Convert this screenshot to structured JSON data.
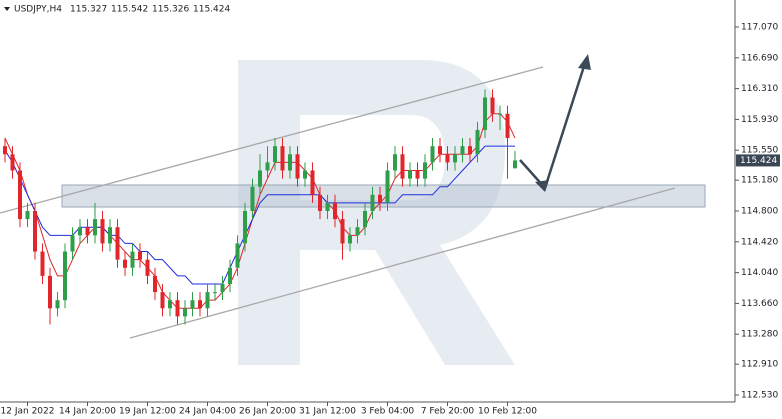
{
  "chart_data": {
    "type": "candlestick",
    "title": "USDJPY,H4",
    "categories": [
      null,
      null,
      null,
      "12 Jan 2022",
      null,
      null,
      null,
      null,
      null,
      null,
      null,
      "14 Jan 20:00",
      null,
      null,
      null,
      null,
      null,
      null,
      null,
      "19 Jan 12:00",
      null,
      null,
      null,
      null,
      null,
      null,
      null,
      "24 Jan 04:00",
      null,
      null,
      null,
      null,
      null,
      null,
      null,
      "26 Jan 20:00",
      null,
      null,
      null,
      null,
      null,
      null,
      null,
      "31 Jan 12:00",
      null,
      null,
      null,
      null,
      null,
      null,
      null,
      "3 Feb 04:00",
      null,
      null,
      null,
      null,
      null,
      null,
      null,
      "7 Feb 20:00",
      null,
      null,
      null,
      null,
      null,
      null,
      null,
      "10 Feb 12:00",
      null
    ],
    "candles": {
      "open": [
        115.6,
        115.5,
        115.3,
        114.7,
        114.8,
        114.3,
        114.0,
        113.6,
        113.7,
        114.3,
        114.5,
        114.6,
        114.5,
        114.7,
        114.4,
        114.6,
        114.2,
        114.1,
        114.3,
        114.2,
        114.0,
        113.8,
        113.6,
        113.7,
        113.5,
        113.6,
        113.7,
        113.6,
        113.8,
        113.8,
        113.9,
        114.1,
        114.4,
        114.8,
        115.1,
        115.3,
        115.4,
        115.6,
        115.3,
        115.5,
        115.2,
        115.3,
        115.0,
        114.8,
        114.9,
        114.7,
        114.4,
        114.5,
        114.6,
        114.8,
        115.0,
        114.9,
        115.3,
        115.5,
        115.2,
        115.3,
        115.2,
        115.4,
        115.6,
        115.5,
        115.4,
        115.5,
        115.6,
        115.5,
        115.8,
        116.2,
        116.0,
        116.0,
        115.327
      ],
      "high": [
        115.7,
        115.6,
        115.4,
        114.9,
        114.9,
        114.4,
        114.1,
        113.8,
        114.4,
        114.6,
        114.7,
        114.7,
        114.9,
        114.8,
        114.7,
        114.7,
        114.3,
        114.4,
        114.4,
        114.3,
        114.1,
        113.9,
        113.8,
        113.8,
        113.7,
        113.8,
        113.8,
        113.9,
        113.9,
        114.0,
        114.2,
        114.5,
        114.9,
        115.2,
        115.5,
        115.6,
        115.7,
        115.7,
        115.6,
        115.6,
        115.4,
        115.4,
        115.1,
        115.0,
        115.0,
        114.8,
        114.6,
        114.7,
        114.9,
        115.1,
        115.1,
        115.4,
        115.6,
        115.6,
        115.4,
        115.4,
        115.5,
        115.7,
        115.7,
        115.6,
        115.6,
        115.7,
        115.7,
        115.9,
        116.3,
        116.3,
        116.1,
        116.1,
        115.542
      ],
      "low": [
        115.4,
        115.2,
        114.6,
        114.6,
        114.2,
        113.9,
        113.4,
        113.5,
        113.6,
        114.2,
        114.4,
        114.4,
        114.4,
        114.3,
        114.3,
        114.1,
        114.0,
        114.0,
        114.1,
        113.9,
        113.7,
        113.5,
        113.5,
        113.4,
        113.4,
        113.5,
        113.5,
        113.5,
        113.7,
        113.7,
        113.8,
        114.0,
        114.3,
        114.7,
        115.0,
        115.2,
        115.3,
        115.2,
        115.2,
        115.1,
        115.1,
        114.9,
        114.7,
        114.7,
        114.6,
        114.2,
        114.3,
        114.4,
        114.5,
        114.7,
        114.8,
        114.8,
        115.2,
        115.1,
        115.1,
        115.1,
        115.1,
        115.3,
        115.4,
        115.3,
        115.3,
        115.4,
        115.4,
        115.4,
        115.7,
        115.9,
        115.8,
        115.2,
        115.326
      ],
      "close": [
        115.5,
        115.3,
        114.7,
        114.8,
        114.3,
        114.0,
        113.6,
        113.7,
        114.3,
        114.5,
        114.6,
        114.5,
        114.7,
        114.4,
        114.6,
        114.2,
        114.1,
        114.3,
        114.2,
        114.0,
        113.8,
        113.6,
        113.7,
        113.5,
        113.6,
        113.7,
        113.6,
        113.8,
        113.8,
        113.9,
        114.1,
        114.4,
        114.8,
        115.1,
        115.3,
        115.4,
        115.6,
        115.3,
        115.5,
        115.2,
        115.3,
        115.0,
        114.8,
        114.9,
        114.7,
        114.4,
        114.5,
        114.6,
        114.8,
        115.0,
        114.9,
        115.3,
        115.5,
        115.2,
        115.3,
        115.2,
        115.4,
        115.6,
        115.5,
        115.4,
        115.5,
        115.6,
        115.5,
        115.8,
        116.2,
        116.0,
        116.0,
        115.7,
        115.424
      ]
    },
    "up_color": "#2e9e4a",
    "down_color": "#e0262b",
    "series": [
      {
        "color": "#e0262b",
        "values": [
          115.7,
          115.5,
          115.3,
          115.0,
          114.8,
          114.5,
          114.2,
          114.0,
          114.0,
          114.2,
          114.4,
          114.5,
          114.6,
          114.6,
          114.5,
          114.4,
          114.3,
          114.2,
          114.2,
          114.1,
          114.0,
          113.8,
          113.7,
          113.6,
          113.6,
          113.6,
          113.6,
          113.7,
          113.7,
          113.8,
          113.9,
          114.1,
          114.4,
          114.7,
          115.0,
          115.2,
          115.4,
          115.4,
          115.4,
          115.4,
          115.3,
          115.2,
          115.0,
          114.9,
          114.8,
          114.6,
          114.5,
          114.5,
          114.6,
          114.8,
          114.9,
          115.0,
          115.2,
          115.3,
          115.3,
          115.3,
          115.3,
          115.4,
          115.5,
          115.5,
          115.5,
          115.5,
          115.5,
          115.6,
          115.9,
          116.0,
          116.0,
          115.9,
          115.7
        ]
      },
      {
        "color": "#1f2ee0",
        "values": [
          115.55,
          115.4,
          115.2,
          115.0,
          114.8,
          114.6,
          114.5,
          114.5,
          114.5,
          114.5,
          114.6,
          114.6,
          114.6,
          114.6,
          114.5,
          114.5,
          114.4,
          114.4,
          114.3,
          114.3,
          114.2,
          114.2,
          114.1,
          114.0,
          114.0,
          113.9,
          113.9,
          113.9,
          113.9,
          113.9,
          114.1,
          114.3,
          114.5,
          114.7,
          114.9,
          115.0,
          115.0,
          115.0,
          115.0,
          115.0,
          115.0,
          115.0,
          115.0,
          114.9,
          114.9,
          114.9,
          114.9,
          114.9,
          114.9,
          114.9,
          114.9,
          114.9,
          114.9,
          115.0,
          115.0,
          115.0,
          115.0,
          115.0,
          115.1,
          115.1,
          115.2,
          115.3,
          115.4,
          115.5,
          115.6,
          115.6,
          115.6,
          115.6,
          115.6
        ]
      }
    ],
    "ylim": [
      112.444,
      117.403
    ],
    "yticks": [
      {
        "value": 117.07,
        "label": "117.070"
      },
      {
        "value": 116.69,
        "label": "116.690"
      },
      {
        "value": 116.31,
        "label": "116.310"
      },
      {
        "value": 115.93,
        "label": "115.930"
      },
      {
        "value": 115.55,
        "label": "115.550"
      },
      {
        "value": 115.18,
        "label": "115.180"
      },
      {
        "value": 114.8,
        "label": "114.800"
      },
      {
        "value": 114.42,
        "label": "114.420"
      },
      {
        "value": 114.04,
        "label": "114.040"
      },
      {
        "value": 113.66,
        "label": "113.660"
      },
      {
        "value": 113.28,
        "label": "113.280"
      },
      {
        "value": 112.91,
        "label": "112.910"
      },
      {
        "value": 112.53,
        "label": "112.530"
      }
    ],
    "price_label_color": "#3b4654"
  }
}
